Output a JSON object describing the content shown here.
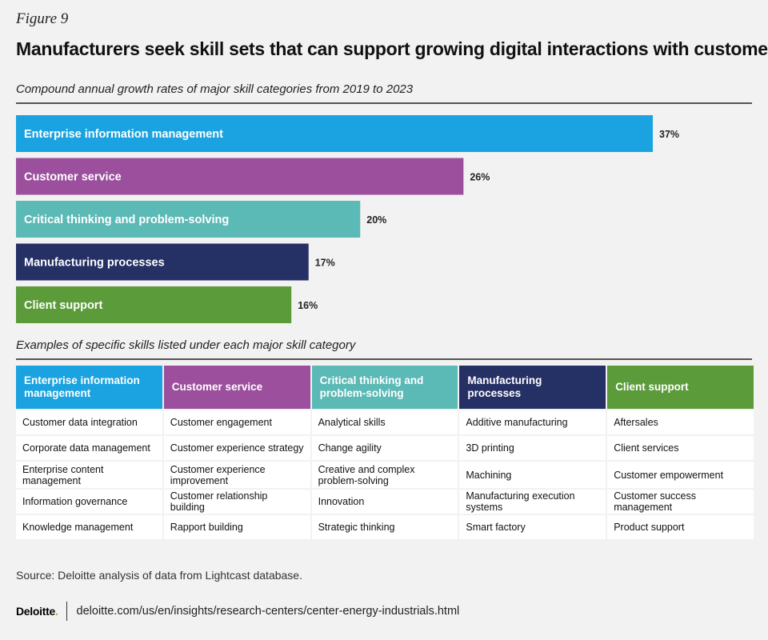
{
  "figure_label": "Figure 9",
  "title": "Manufacturers seek skill sets that can support growing digital interactions with customers",
  "subtitle": "Compound annual growth rates of major skill categories from 2019 to 2023",
  "colors": {
    "enterprise": "#1aa3e0",
    "customer_service": "#9b4f9c",
    "critical_thinking": "#5bb9b6",
    "manufacturing": "#253065",
    "client_support": "#5c9b3a"
  },
  "chart_data": {
    "type": "bar",
    "orientation": "horizontal",
    "title": "Compound annual growth rates of major skill categories from 2019 to 2023",
    "categories": [
      "Enterprise information management",
      "Customer service",
      "Critical thinking and problem-solving",
      "Manufacturing processes",
      "Client support"
    ],
    "values": [
      37,
      26,
      20,
      17,
      16
    ],
    "value_labels": [
      "37%",
      "26%",
      "20%",
      "17%",
      "16%"
    ],
    "bar_colors": [
      "#1aa3e0",
      "#9b4f9c",
      "#5bb9b6",
      "#253065",
      "#5c9b3a"
    ],
    "unit": "%",
    "xlim": [
      0,
      37
    ],
    "xlabel": "",
    "ylabel": "",
    "grid": false
  },
  "table_subtitle": "Examples of specific skills listed under each major skill category",
  "table": {
    "headers": [
      {
        "label": "Enterprise information management",
        "color": "#1aa3e0"
      },
      {
        "label": "Customer service",
        "color": "#9b4f9c"
      },
      {
        "label": "Critical thinking and problem-solving",
        "color": "#5bb9b6"
      },
      {
        "label": "Manufacturing processes",
        "color": "#253065"
      },
      {
        "label": "Client support",
        "color": "#5c9b3a"
      }
    ],
    "rows": [
      [
        "Customer data integration",
        "Customer engagement",
        "Analytical skills",
        "Additive manufacturing",
        "Aftersales"
      ],
      [
        "Corporate data management",
        "Customer experience strategy",
        "Change agility",
        "3D printing",
        "Client services"
      ],
      [
        "Enterprise content management",
        "Customer experience improvement",
        "Creative and complex problem-solving",
        "Machining",
        "Customer empowerment"
      ],
      [
        "Information governance",
        "Customer relationship building",
        "Innovation",
        "Manufacturing execution systems",
        "Customer success management"
      ],
      [
        "Knowledge management",
        "Rapport building",
        "Strategic thinking",
        "Smart factory",
        "Product support"
      ]
    ]
  },
  "source": "Source: Deloitte analysis of data from Lightcast database.",
  "footer": {
    "logo": "Deloitte",
    "logo_dot": ".",
    "url": "deloitte.com/us/en/insights/research-centers/center-energy-industrials.html"
  }
}
